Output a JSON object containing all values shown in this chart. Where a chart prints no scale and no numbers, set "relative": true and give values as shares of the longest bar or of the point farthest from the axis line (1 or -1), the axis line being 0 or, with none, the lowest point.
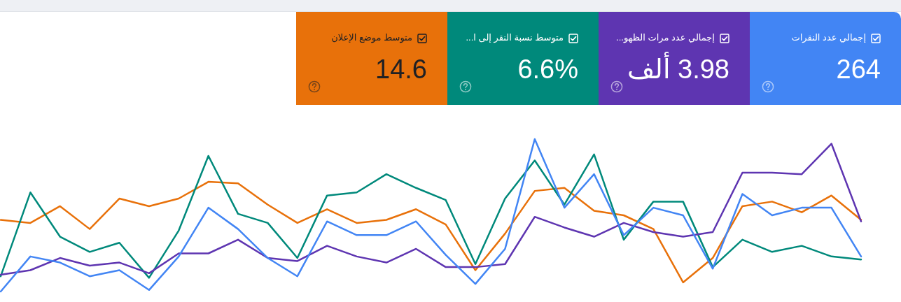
{
  "chart_data": [
    {
      "type": "other",
      "categories": [
        "إجمالي عدد النقرات",
        "إجمالي عدد مرات الظهو...",
        "متوسط نسبة النقر إلى ا...",
        "متوسط موضع الإعلان"
      ],
      "annotations": [
        "264",
        "3.98 ألف",
        "6.6%",
        "14.6"
      ],
      "colors": [
        "#4285f4",
        "#5e35b1",
        "#00897b",
        "#e8710a"
      ]
    },
    {
      "type": "line",
      "relative": true,
      "categories": [
        null,
        null,
        null,
        null,
        null,
        null,
        null,
        null,
        null,
        null,
        null,
        null,
        null,
        null,
        null,
        null,
        null,
        null,
        null,
        null,
        null,
        null,
        null,
        null,
        null,
        null,
        null,
        null,
        null,
        null
      ],
      "series": [
        {
          "color": "#4285f4",
          "values": [
            0,
            0.23,
            0.19,
            0.1,
            0.14,
            0.01,
            0.23,
            0.55,
            0.41,
            0.22,
            0.1,
            0.46,
            0.37,
            0.37,
            0.46,
            0.24,
            0.05,
            0.28,
            1,
            0.55,
            0.77,
            0.37,
            0.55,
            0.5,
            0.15,
            0.64,
            0.5,
            0.55,
            0.55,
            0.23
          ]
        },
        {
          "color": "#5e35b1",
          "values": [
            0.11,
            0.14,
            0.22,
            0.17,
            0.19,
            0.12,
            0.25,
            0.25,
            0.34,
            0.22,
            0.2,
            0.3,
            0.23,
            0.19,
            0.28,
            0.16,
            0.16,
            0.18,
            0.49,
            0.42,
            0.36,
            0.45,
            0.39,
            0.36,
            0.39,
            0.78,
            0.78,
            0.77,
            0.97,
            0.46
          ]
        },
        {
          "color": "#00897b",
          "values": [
            0.1,
            0.65,
            0.36,
            0.26,
            0.32,
            0.09,
            0.4,
            0.89,
            0.51,
            0.45,
            0.22,
            0.63,
            0.65,
            0.77,
            0.68,
            0.6,
            0.18,
            0.61,
            0.86,
            0.57,
            0.9,
            0.34,
            0.59,
            0.59,
            0.16,
            0.34,
            0.26,
            0.3,
            0.23,
            0.21
          ]
        },
        {
          "color": "#e8710a",
          "values": [
            0.47,
            0.45,
            0.56,
            0.41,
            0.61,
            0.56,
            0.61,
            0.72,
            0.71,
            0.57,
            0.45,
            0.54,
            0.45,
            0.47,
            0.54,
            0.44,
            0.14,
            0.38,
            0.66,
            0.68,
            0.53,
            0.5,
            0.41,
            0.06,
            0.22,
            0.56,
            0.59,
            0.52,
            0.63,
            0.47
          ]
        }
      ]
    }
  ]
}
